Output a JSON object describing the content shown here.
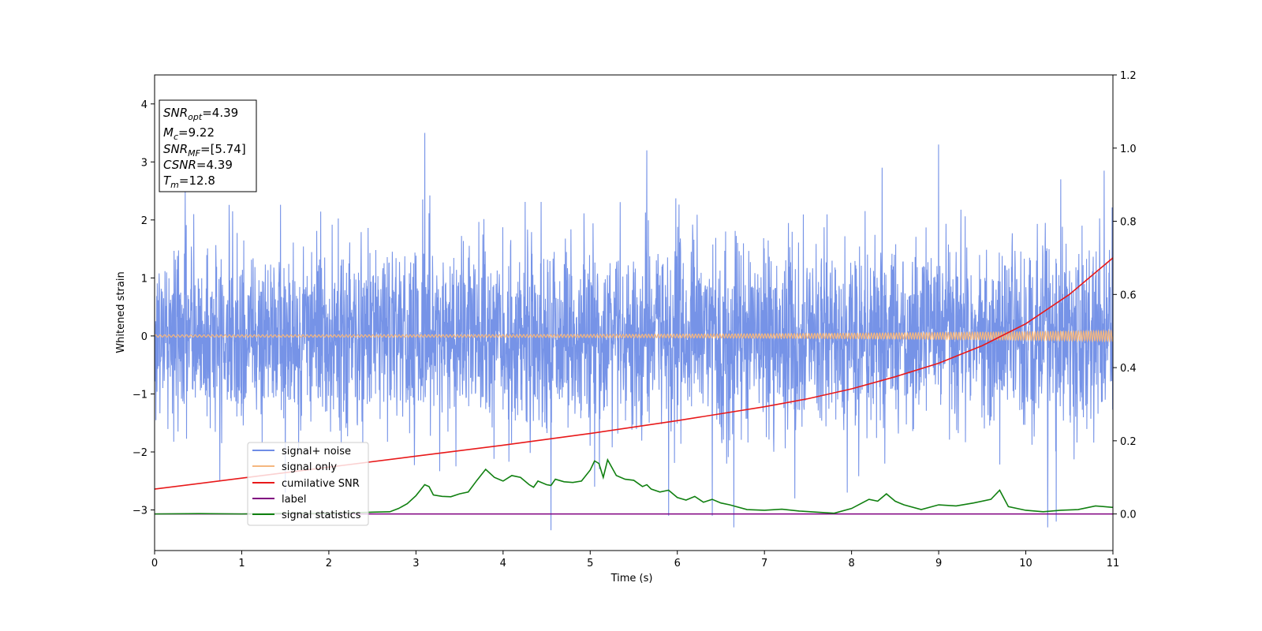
{
  "chart_data": {
    "type": "line",
    "xlabel": "Time (s)",
    "ylabel": "Whitened strain",
    "xlim": [
      0,
      11
    ],
    "ylim": [
      -3.7,
      4.5
    ],
    "y2lim": [
      -0.1,
      1.2
    ],
    "xticks": [
      "0",
      "1",
      "2",
      "3",
      "4",
      "5",
      "6",
      "7",
      "8",
      "9",
      "10",
      "11"
    ],
    "yticks": [
      "−3",
      "−2",
      "−1",
      "0",
      "1",
      "2",
      "3",
      "4"
    ],
    "y2ticks": [
      "0.0",
      "0.2",
      "0.4",
      "0.6",
      "0.8",
      "1.0",
      "1.2"
    ],
    "grid": false,
    "legend_position": "lower-left",
    "info_box": {
      "lines": [
        {
          "main": "SNR",
          "sub": "opt",
          "rest": "=4.39"
        },
        {
          "main": "M",
          "sub": "c",
          "rest": "=9.22"
        },
        {
          "main": "SNR",
          "sub": "MF",
          "rest": "=[5.74]"
        },
        {
          "main": "CSNR",
          "sub": "",
          "rest": "=4.39"
        },
        {
          "main": "T",
          "sub": "m",
          "rest": "=12.8"
        }
      ]
    },
    "series": [
      {
        "name": "signal+ noise",
        "axis": "left",
        "color": "#6f8de6",
        "kind": "noise",
        "envelope": {
          "x": [
            0,
            3,
            5,
            8,
            11
          ],
          "sigma": [
            0.75,
            0.8,
            0.82,
            0.8,
            0.78
          ]
        },
        "spikes": [
          [
            0.35,
            2.5
          ],
          [
            0.45,
            2.1
          ],
          [
            0.75,
            -2.5
          ],
          [
            1.5,
            -2.7
          ],
          [
            3.1,
            3.5
          ],
          [
            4.55,
            -3.35
          ],
          [
            5.05,
            -2.6
          ],
          [
            5.65,
            3.2
          ],
          [
            5.9,
            -3.1
          ],
          [
            6.4,
            -3.1
          ],
          [
            6.65,
            -3.3
          ],
          [
            7.35,
            -2.8
          ],
          [
            7.95,
            -2.7
          ],
          [
            8.35,
            2.9
          ],
          [
            9.0,
            3.3
          ],
          [
            10.25,
            -3.3
          ],
          [
            10.35,
            -3.2
          ],
          [
            10.4,
            2.7
          ],
          [
            10.9,
            2.85
          ]
        ]
      },
      {
        "name": "signal only",
        "axis": "left",
        "color": "#f5b77f",
        "kind": "chirp",
        "amplitude_start": 0.02,
        "amplitude_end": 0.09,
        "cycles": 300
      },
      {
        "name": "cumilative SNR",
        "axis": "right",
        "color": "#e8191a",
        "x": [
          0,
          1,
          2,
          3,
          4,
          5,
          6,
          7,
          7.5,
          8,
          8.5,
          9,
          9.5,
          10,
          10.5,
          11
        ],
        "y": [
          0.068,
          0.098,
          0.128,
          0.158,
          0.188,
          0.22,
          0.255,
          0.293,
          0.315,
          0.342,
          0.375,
          0.412,
          0.46,
          0.52,
          0.6,
          0.7
        ]
      },
      {
        "name": "label",
        "axis": "right",
        "color": "#800080",
        "x": [
          0,
          11
        ],
        "y": [
          0.0,
          0.0
        ]
      },
      {
        "name": "signal statistics",
        "axis": "right",
        "color": "#118011",
        "x": [
          0,
          0.5,
          1.0,
          1.5,
          2.0,
          2.5,
          2.7,
          2.8,
          2.9,
          3.0,
          3.05,
          3.1,
          3.15,
          3.2,
          3.3,
          3.4,
          3.5,
          3.6,
          3.7,
          3.8,
          3.9,
          4.0,
          4.1,
          4.2,
          4.3,
          4.35,
          4.4,
          4.5,
          4.55,
          4.6,
          4.7,
          4.8,
          4.9,
          5.0,
          5.05,
          5.1,
          5.15,
          5.2,
          5.3,
          5.4,
          5.5,
          5.6,
          5.65,
          5.7,
          5.8,
          5.9,
          6.0,
          6.1,
          6.2,
          6.3,
          6.4,
          6.5,
          6.6,
          6.8,
          7.0,
          7.2,
          7.4,
          7.6,
          7.8,
          8.0,
          8.2,
          8.3,
          8.4,
          8.5,
          8.6,
          8.8,
          9.0,
          9.2,
          9.4,
          9.6,
          9.7,
          9.8,
          10.0,
          10.2,
          10.4,
          10.6,
          10.8,
          11.0
        ],
        "y": [
          0.0,
          0.001,
          0.0,
          0.002,
          0.001,
          0.005,
          0.006,
          0.015,
          0.028,
          0.05,
          0.065,
          0.08,
          0.075,
          0.052,
          0.048,
          0.047,
          0.055,
          0.06,
          0.092,
          0.122,
          0.1,
          0.09,
          0.105,
          0.1,
          0.08,
          0.073,
          0.09,
          0.08,
          0.078,
          0.095,
          0.088,
          0.086,
          0.09,
          0.12,
          0.145,
          0.138,
          0.1,
          0.148,
          0.105,
          0.095,
          0.092,
          0.075,
          0.08,
          0.068,
          0.06,
          0.065,
          0.045,
          0.038,
          0.048,
          0.032,
          0.04,
          0.03,
          0.025,
          0.012,
          0.01,
          0.013,
          0.008,
          0.005,
          0.002,
          0.015,
          0.04,
          0.035,
          0.055,
          0.035,
          0.025,
          0.012,
          0.025,
          0.022,
          0.03,
          0.04,
          0.065,
          0.02,
          0.01,
          0.006,
          0.01,
          0.012,
          0.022,
          0.018
        ]
      }
    ]
  }
}
